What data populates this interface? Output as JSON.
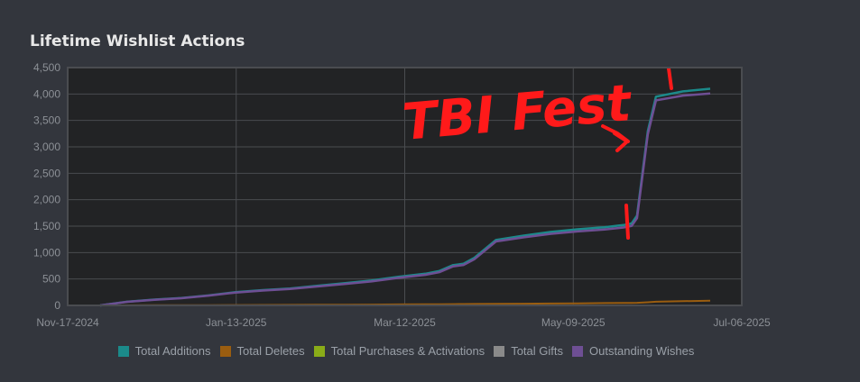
{
  "title": "Lifetime Wishlist Actions",
  "colors": {
    "background": "#33363d",
    "plot_background": "#222325",
    "grid": "#4a4c50",
    "axis_text": "#8c9096",
    "annotation": "#ff1a1a"
  },
  "legend": [
    {
      "label": "Total Additions",
      "color": "#1b8a8a"
    },
    {
      "label": "Total Deletes",
      "color": "#9a5d10"
    },
    {
      "label": "Total Purchases & Activations",
      "color": "#8aac18"
    },
    {
      "label": "Total Gifts",
      "color": "#8a8a8a"
    },
    {
      "label": "Outstanding Wishes",
      "color": "#6e4f94"
    }
  ],
  "annotation": {
    "text": "TBI Fest"
  },
  "chart_data": {
    "type": "line",
    "title": "Lifetime Wishlist Actions",
    "x_ticks": [
      "Nov-17-2024",
      "Jan-13-2025",
      "Mar-12-2025",
      "May-09-2025",
      "Jul-06-2025"
    ],
    "y_ticks": [
      "0",
      "500",
      "1,000",
      "1,500",
      "2,000",
      "2,500",
      "3,000",
      "3,500",
      "4,000",
      "4,500"
    ],
    "xlim": [
      "2024-11-17",
      "2025-07-06"
    ],
    "ylim": [
      0,
      4500
    ],
    "grid": true,
    "legend_position": "bottom",
    "x": [
      "2024-11-17",
      "2024-11-27",
      "2024-12-07",
      "2024-12-17",
      "2024-12-27",
      "2025-01-06",
      "2025-01-16",
      "2025-01-26",
      "2025-02-05",
      "2025-02-15",
      "2025-02-25",
      "2025-03-07",
      "2025-03-17",
      "2025-03-22",
      "2025-03-27",
      "2025-03-31",
      "2025-04-04",
      "2025-04-12",
      "2025-04-22",
      "2025-05-02",
      "2025-05-12",
      "2025-05-22",
      "2025-05-29",
      "2025-06-01",
      "2025-06-03",
      "2025-06-07",
      "2025-06-10",
      "2025-06-20",
      "2025-06-30"
    ],
    "series": [
      {
        "name": "Total Additions",
        "values": [
          0,
          70,
          110,
          140,
          190,
          250,
          290,
          320,
          370,
          420,
          470,
          540,
          600,
          650,
          760,
          790,
          900,
          1240,
          1320,
          1390,
          1440,
          1480,
          1520,
          1550,
          1700,
          3300,
          3950,
          4050,
          4100
        ]
      },
      {
        "name": "Total Deletes",
        "values": [
          0,
          2,
          3,
          4,
          5,
          6,
          8,
          10,
          12,
          14,
          16,
          18,
          20,
          22,
          24,
          25,
          27,
          30,
          33,
          36,
          40,
          44,
          46,
          47,
          50,
          60,
          70,
          80,
          90
        ]
      },
      {
        "name": "Total Purchases & Activations",
        "values": [
          0,
          0,
          0,
          0,
          0,
          0,
          0,
          0,
          0,
          0,
          0,
          0,
          0,
          0,
          0,
          0,
          0,
          0,
          0,
          0,
          0,
          0,
          0,
          0,
          0,
          0,
          0,
          0,
          0
        ]
      },
      {
        "name": "Total Gifts",
        "values": [
          0,
          0,
          0,
          0,
          0,
          0,
          0,
          0,
          0,
          0,
          0,
          0,
          0,
          0,
          0,
          0,
          0,
          0,
          0,
          0,
          0,
          0,
          0,
          0,
          0,
          0,
          0,
          0,
          0
        ]
      },
      {
        "name": "Outstanding Wishes",
        "values": [
          0,
          68,
          107,
          136,
          185,
          244,
          282,
          310,
          358,
          406,
          454,
          522,
          580,
          628,
          736,
          765,
          873,
          1210,
          1287,
          1354,
          1400,
          1436,
          1474,
          1503,
          1650,
          3240,
          3880,
          3970,
          4010
        ]
      }
    ]
  }
}
